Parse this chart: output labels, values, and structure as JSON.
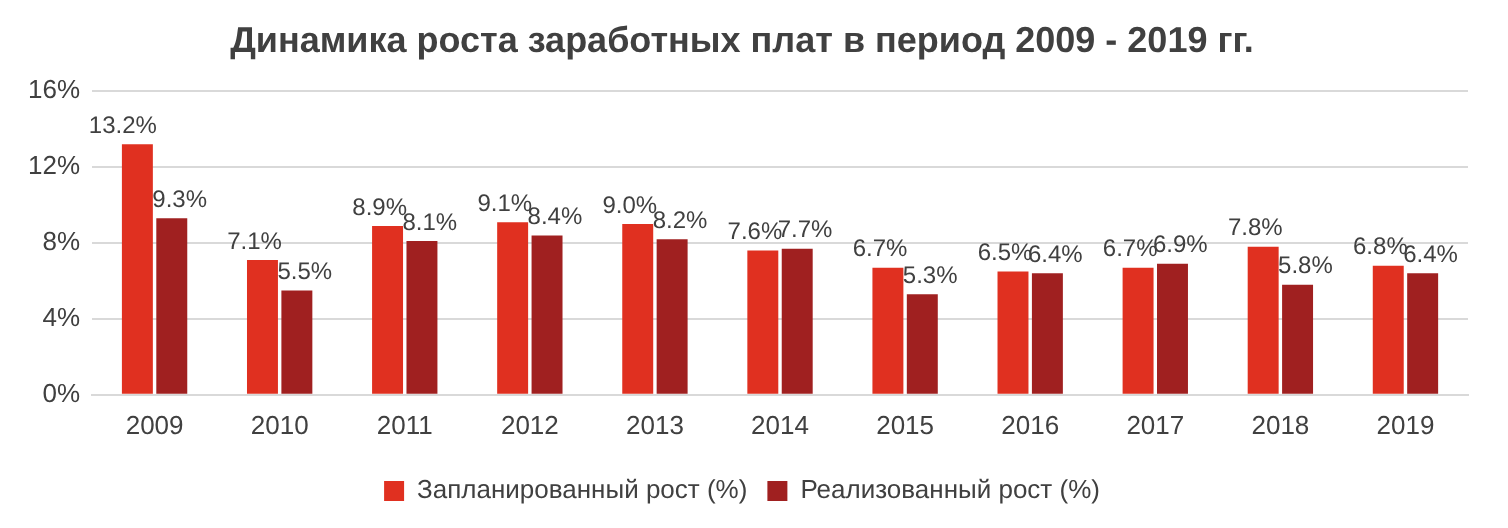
{
  "chart_data": {
    "type": "bar",
    "title": "Динамика роста заработных плат в период 2009 - 2019 гг.",
    "categories": [
      "2009",
      "2010",
      "2011",
      "2012",
      "2013",
      "2014",
      "2015",
      "2016",
      "2017",
      "2018",
      "2019"
    ],
    "series": [
      {
        "name": "Запланированный рост (%)",
        "color": "#e03020",
        "values": [
          13.2,
          7.1,
          8.9,
          9.1,
          9.0,
          7.6,
          6.7,
          6.5,
          6.7,
          7.8,
          6.8
        ],
        "value_labels": [
          "13.2%",
          "7.1%",
          "8.9%",
          "9.1%",
          "9.0%",
          "7.6%",
          "6.7%",
          "6.5%",
          "6.7%",
          "7.8%",
          "6.8%"
        ]
      },
      {
        "name": "Реализованный рост (%)",
        "color": "#a02020",
        "values": [
          9.3,
          5.5,
          8.1,
          8.4,
          8.2,
          7.7,
          5.3,
          6.4,
          6.9,
          5.8,
          6.4
        ],
        "value_labels": [
          "9.3%",
          "5.5%",
          "8.1%",
          "8.4%",
          "8.2%",
          "7.7%",
          "5.3%",
          "6.4%",
          "6.9%",
          "5.8%",
          "6.4%"
        ]
      }
    ],
    "ylim": [
      0,
      16
    ],
    "yticks": [
      {
        "value": 0,
        "label": "0%"
      },
      {
        "value": 4,
        "label": "4%"
      },
      {
        "value": 8,
        "label": "8%"
      },
      {
        "value": 12,
        "label": "12%"
      },
      {
        "value": 16,
        "label": "16%"
      }
    ],
    "grid": "y",
    "legend": "bottom"
  }
}
